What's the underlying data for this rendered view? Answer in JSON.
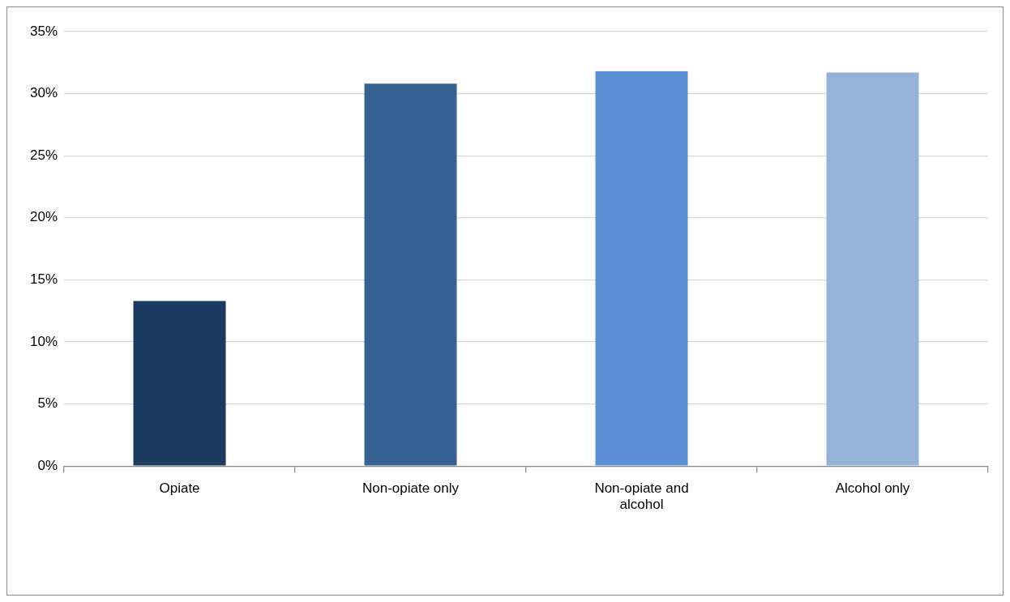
{
  "chart_data": {
    "type": "bar",
    "categories": [
      "Opiate",
      "Non-opiate only",
      "Non-opiate and alcohol",
      "Alcohol only"
    ],
    "values": [
      13.3,
      30.8,
      31.8,
      31.7
    ],
    "colors": [
      "#1b3a5f",
      "#366294",
      "#5a90d6",
      "#95b3d7"
    ],
    "ylim": [
      0,
      35
    ],
    "yticks": [
      {
        "value": 0,
        "label": "0%"
      },
      {
        "value": 5,
        "label": "5%"
      },
      {
        "value": 10,
        "label": "10%"
      },
      {
        "value": 15,
        "label": "15%"
      },
      {
        "value": 20,
        "label": "20%"
      },
      {
        "value": 25,
        "label": "25%"
      },
      {
        "value": 30,
        "label": "30%"
      },
      {
        "value": 35,
        "label": "35%"
      }
    ],
    "grid": "y",
    "legend": false
  }
}
